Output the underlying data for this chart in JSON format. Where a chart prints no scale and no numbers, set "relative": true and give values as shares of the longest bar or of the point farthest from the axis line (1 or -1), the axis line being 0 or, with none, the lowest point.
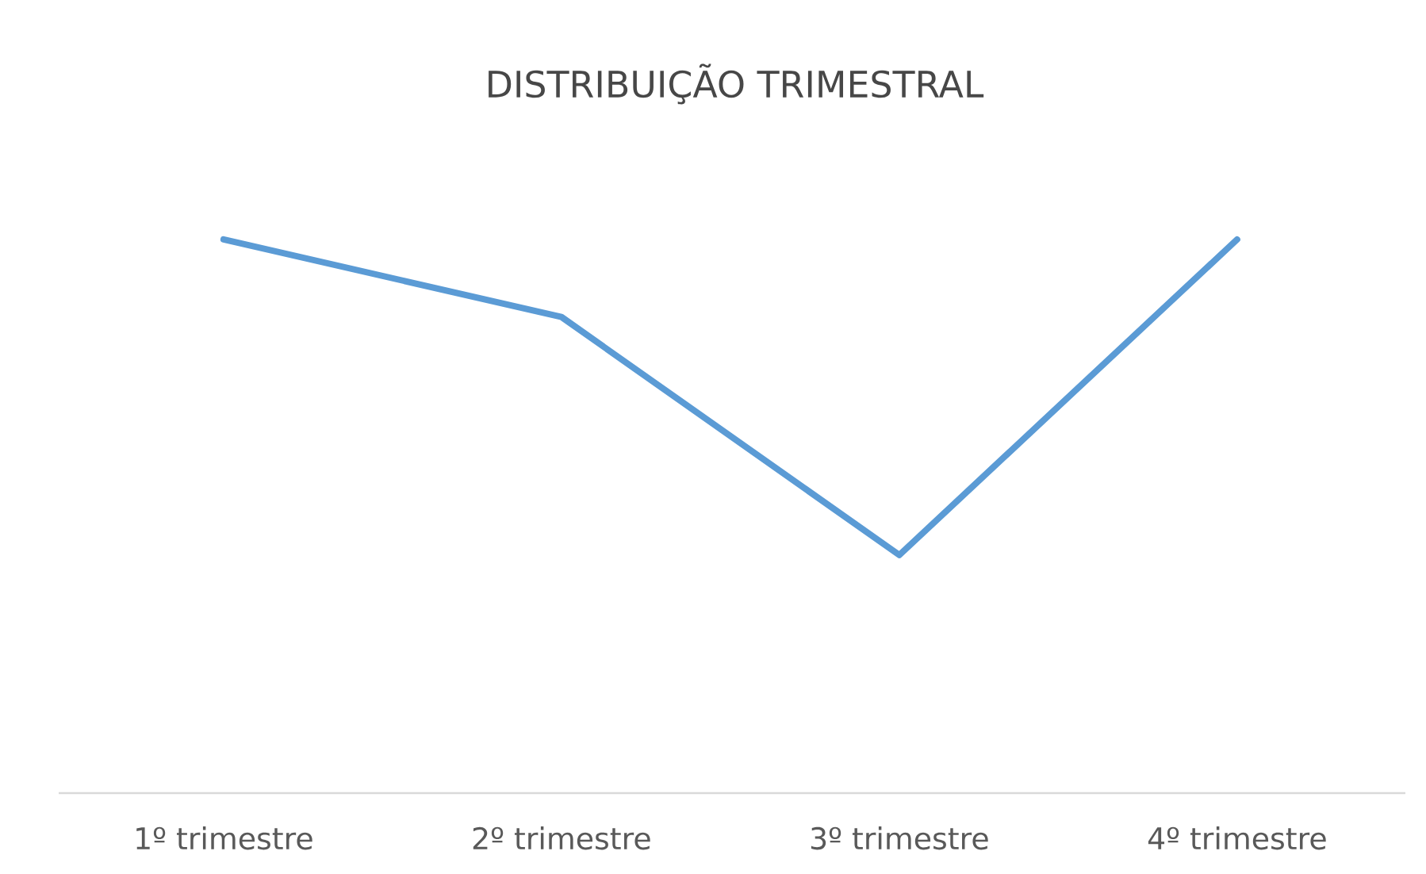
{
  "chart_data": {
    "type": "line",
    "title": "DISTRIBUIÇÃO TRIMESTRAL",
    "relative": true,
    "categories": [
      "1º trimestre",
      "2º trimestre",
      "3º trimestre",
      "4º trimestre"
    ],
    "series": [
      {
        "color": "#5b9bd5",
        "values": [
          1,
          0.86,
          0.43,
          1
        ]
      }
    ],
    "marker": "none",
    "line_style": "solid"
  }
}
